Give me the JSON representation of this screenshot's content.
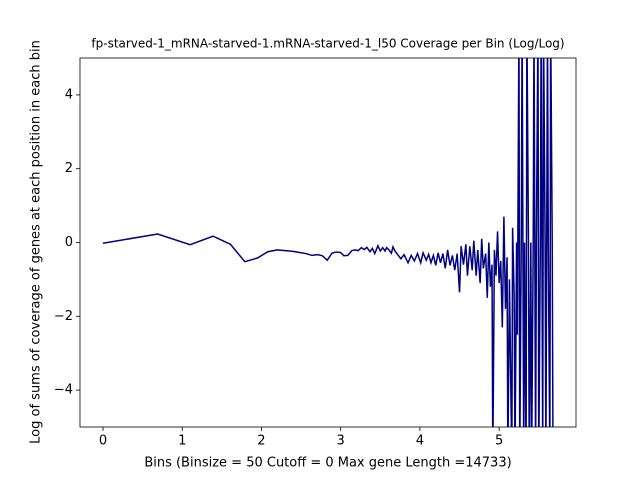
{
  "chart_data": {
    "type": "line",
    "title": "fp-starved-1_mRNA-starved-1.mRNA-starved-1_l50 Coverage per Bin (Log/Log)",
    "xlabel": "Bins  (Binsize = 50 Cutoff = 0 Max gene Length =14733)",
    "ylabel": "Log of sums of coverage of genes at each position in each bin",
    "color": "#000080",
    "xlim": [
      -0.29,
      5.97
    ],
    "ylim": [
      -5,
      5
    ],
    "xticks": [
      0,
      1,
      2,
      3,
      4,
      5
    ],
    "yticks": [
      {
        "value": -4,
        "label": "−4"
      },
      {
        "value": -2,
        "label": "−2"
      },
      0,
      2,
      4
    ],
    "x": [
      0,
      0.69,
      1.1,
      1.39,
      1.61,
      1.79,
      1.95,
      2.08,
      2.2,
      2.3,
      2.4,
      2.48,
      2.56,
      2.64,
      2.71,
      2.77,
      2.83,
      2.89,
      2.94,
      3.0,
      3.04,
      3.09,
      3.14,
      3.18,
      3.22,
      3.26,
      3.3,
      3.33,
      3.37,
      3.4,
      3.43,
      3.47,
      3.5,
      3.53,
      3.56,
      3.58,
      3.61,
      3.64,
      3.66,
      3.69,
      3.71,
      3.76,
      3.8,
      3.85,
      3.89,
      3.93,
      3.97,
      4.01,
      4.04,
      4.08,
      4.11,
      4.14,
      4.17,
      4.2,
      4.23,
      4.26,
      4.29,
      4.32,
      4.35,
      4.38,
      4.41,
      4.44,
      4.47,
      4.5,
      4.52,
      4.55,
      4.58,
      4.6,
      4.63,
      4.66,
      4.68,
      4.71,
      4.73,
      4.76,
      4.78,
      4.8,
      4.83,
      4.85,
      4.87,
      4.89,
      4.91,
      4.92,
      4.94,
      4.96,
      4.98,
      5.0,
      5.02,
      5.04,
      5.06,
      5.08,
      5.1,
      5.11,
      5.13,
      5.14,
      5.16,
      5.17,
      5.19,
      5.2,
      5.22,
      5.23,
      5.25,
      5.26,
      5.28,
      5.29,
      5.31,
      5.32,
      5.34,
      5.35,
      5.37,
      5.38,
      5.4,
      5.41,
      5.43,
      5.44,
      5.46,
      5.47,
      5.49,
      5.5,
      5.52,
      5.53,
      5.55,
      5.56,
      5.58,
      5.59,
      5.61,
      5.62,
      5.64,
      5.65,
      5.67,
      5.68
    ],
    "values": [
      -0.02,
      0.23,
      -0.06,
      0.17,
      -0.05,
      -0.52,
      -0.42,
      -0.25,
      -0.2,
      -0.22,
      -0.24,
      -0.27,
      -0.3,
      -0.35,
      -0.33,
      -0.36,
      -0.48,
      -0.29,
      -0.26,
      -0.27,
      -0.36,
      -0.35,
      -0.22,
      -0.2,
      -0.22,
      -0.14,
      -0.19,
      -0.13,
      -0.25,
      -0.16,
      -0.3,
      -0.09,
      -0.23,
      -0.14,
      -0.23,
      -0.14,
      -0.2,
      -0.29,
      -0.12,
      -0.25,
      -0.3,
      -0.44,
      -0.33,
      -0.55,
      -0.35,
      -0.5,
      -0.3,
      -0.55,
      -0.28,
      -0.48,
      -0.32,
      -0.55,
      -0.35,
      -0.62,
      -0.28,
      -0.55,
      -0.3,
      -0.7,
      -0.2,
      -0.62,
      -0.35,
      -0.75,
      -0.3,
      -1.35,
      -0.1,
      -0.6,
      -0.05,
      -0.9,
      -0.1,
      -0.75,
      0.05,
      -0.9,
      -0.2,
      -1.1,
      0.1,
      -0.7,
      -0.3,
      -1.5,
      0.0,
      -1.2,
      -0.6,
      -6,
      -0.2,
      -0.9,
      0.3,
      -1.1,
      -0.5,
      -2.3,
      0.7,
      -1.8,
      -0.4,
      -6,
      -1.0,
      -2.7,
      -6,
      0.4,
      -1.5,
      -6,
      0.0,
      -2.5,
      6,
      -6,
      0.3,
      6,
      -6,
      0.0,
      -6,
      6,
      0.0,
      -6,
      0.0,
      -6,
      0.0,
      6,
      -6,
      0.0,
      6,
      -6,
      0.0,
      6,
      -6,
      6,
      0.0,
      -6,
      6,
      0.0,
      -6,
      6,
      0.0,
      -6
    ]
  }
}
